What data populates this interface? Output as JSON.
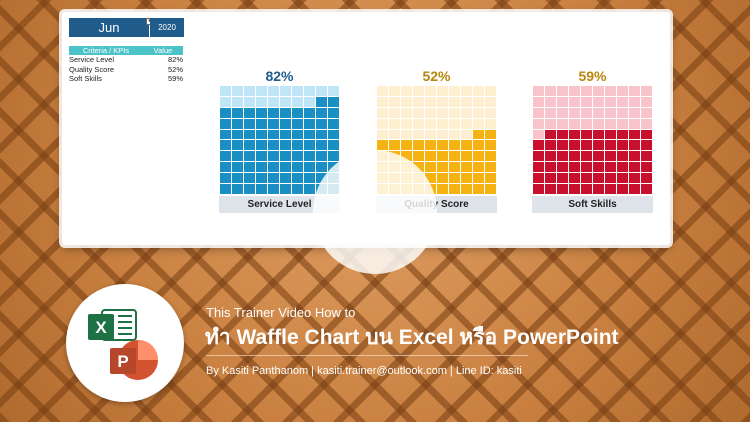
{
  "header": {
    "month": "Jun",
    "dropdown_glyph": "▾",
    "year": "2020"
  },
  "kpi_table": {
    "headers": [
      "Criteria / KPIs",
      "Value"
    ],
    "rows": [
      {
        "name": "Service Level",
        "value": "82%"
      },
      {
        "name": "Quality Score",
        "value": "52%"
      },
      {
        "name": "Soft Skills",
        "value": "59%"
      }
    ]
  },
  "waffles": [
    {
      "pct_label": "82%",
      "label": "Service Level",
      "value": 82,
      "color": "#1a8fc4",
      "light_color": "#bfe6f7",
      "pct_color": "#1f5c8c"
    },
    {
      "pct_label": "52%",
      "label": "Quality Score",
      "value": 52,
      "color": "#f5b312",
      "light_color": "#fdefcf",
      "pct_color": "#b8860b"
    },
    {
      "pct_label": "59%",
      "label": "Soft Skills",
      "value": 59,
      "color": "#c8102e",
      "light_color": "#f9c3cb",
      "pct_color": "#b8860b"
    }
  ],
  "banner": {
    "subtitle": "This Trainer Video How to",
    "title": "ทำ Waffle Chart บน Excel หรือ PowerPoint",
    "credit": "By Kasiti Panthanom | kasiti.trainer@outlook.com | Line ID: kasiti"
  },
  "icons": [
    "excel-icon",
    "powerpoint-icon"
  ]
}
